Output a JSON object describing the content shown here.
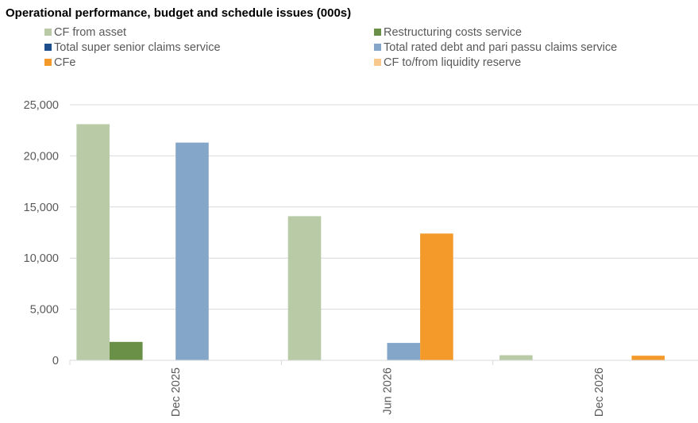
{
  "chart_data": {
    "type": "bar",
    "title": "Operational performance, budget and schedule issues (000s)",
    "xlabel": "",
    "ylabel": "",
    "categories": [
      "Dec 2025",
      "Jun 2026",
      "Dec 2026"
    ],
    "ylim": [
      0,
      25000
    ],
    "yticks": [
      0,
      5000,
      10000,
      15000,
      20000,
      25000
    ],
    "ytick_labels": [
      "0",
      "5,000",
      "10,000",
      "15,000",
      "20,000",
      "25,000"
    ],
    "grid": true,
    "legend_position": "top",
    "series": [
      {
        "name": "CF from asset",
        "color": "#b8cba6",
        "values": [
          23100,
          14100,
          500
        ]
      },
      {
        "name": "Restructuring costs service",
        "color": "#6a8f47",
        "values": [
          1800,
          0,
          0
        ]
      },
      {
        "name": "Total super senior claims service",
        "color": "#1f4e8c",
        "values": [
          0,
          0,
          0
        ]
      },
      {
        "name": "Total rated debt and pari passu claims service",
        "color": "#84a6c9",
        "values": [
          21300,
          1700,
          0
        ]
      },
      {
        "name": "CFe",
        "color": "#f39a2a",
        "values": [
          0,
          12400,
          450
        ]
      },
      {
        "name": "CF to/from liquidity reserve",
        "color": "#f9c88f",
        "values": [
          0,
          0,
          0
        ]
      }
    ]
  }
}
